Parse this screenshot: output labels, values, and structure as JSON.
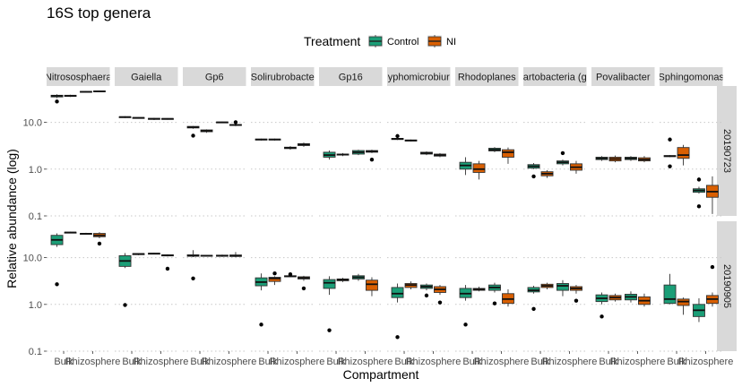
{
  "chart_data": {
    "type": "boxplot",
    "title": "16S top genera",
    "xlabel": "Compartment",
    "ylabel": "Relative abundance (log)",
    "y_scale": "log10",
    "ylim": [
      0.1,
      60
    ],
    "y_ticks": [
      "0.1",
      "1.0",
      "10.0"
    ],
    "x_categories": [
      "Bulk",
      "Rhizosphere"
    ],
    "legend": {
      "title": "Treatment",
      "position": "top",
      "entries": [
        {
          "name": "Control",
          "color": "#1b9e77"
        },
        {
          "name": "NI",
          "color": "#d95f02"
        }
      ]
    },
    "facet_cols": [
      "Nitrososphaera",
      "Gaiella",
      "Gp6",
      "Solirubrobacter",
      "Gp16",
      "Hyphomicrobium",
      "Rhodoplanes",
      "Spartobacteria (genus)",
      "Povalibacter",
      "Sphingomonas"
    ],
    "facet_col_labels": [
      "Nitrososphaera",
      "Gaiella",
      "Gp6",
      "Solirubrobacte",
      "Gp16",
      "yphomicrobiur",
      "Rhodoplanes",
      "artobacteria (g",
      "Povalibacter",
      "Sphingomonas"
    ],
    "facet_rows": [
      "20190723",
      "20190905"
    ],
    "boxes": [
      {
        "row": 0,
        "col": 0,
        "x": "Bulk",
        "t": "Control",
        "s": [
          33,
          35,
          37,
          38,
          40
        ],
        "out": [
          28
        ]
      },
      {
        "row": 0,
        "col": 0,
        "x": "Bulk",
        "t": "NI",
        "s": [
          35,
          36,
          37,
          38,
          39
        ],
        "out": []
      },
      {
        "row": 0,
        "col": 0,
        "x": "Rhizosphere",
        "t": "Control",
        "s": [
          43,
          44,
          45,
          46,
          47
        ],
        "out": []
      },
      {
        "row": 0,
        "col": 0,
        "x": "Rhizosphere",
        "t": "NI",
        "s": [
          44,
          45,
          46,
          47,
          48
        ],
        "out": []
      },
      {
        "row": 0,
        "col": 1,
        "x": "Bulk",
        "t": "Control",
        "s": [
          12.4,
          12.8,
          13.0,
          13.2,
          13.5
        ],
        "out": []
      },
      {
        "row": 0,
        "col": 1,
        "x": "Bulk",
        "t": "NI",
        "s": [
          12.0,
          12.3,
          12.5,
          12.7,
          12.9
        ],
        "out": []
      },
      {
        "row": 0,
        "col": 1,
        "x": "Rhizosphere",
        "t": "Control",
        "s": [
          11.2,
          11.6,
          11.9,
          12.2,
          12.5
        ],
        "out": []
      },
      {
        "row": 0,
        "col": 1,
        "x": "Rhizosphere",
        "t": "NI",
        "s": [
          11.4,
          11.7,
          11.9,
          12.1,
          12.3
        ],
        "out": []
      },
      {
        "row": 0,
        "col": 2,
        "x": "Bulk",
        "t": "Control",
        "s": [
          7.3,
          7.6,
          7.9,
          8.2,
          8.4
        ],
        "out": [
          5.2
        ]
      },
      {
        "row": 0,
        "col": 2,
        "x": "Bulk",
        "t": "NI",
        "s": [
          6.0,
          6.3,
          6.6,
          6.9,
          7.1
        ],
        "out": []
      },
      {
        "row": 0,
        "col": 2,
        "x": "Rhizosphere",
        "t": "Control",
        "s": [
          9.6,
          9.8,
          10.0,
          10.2,
          10.4
        ],
        "out": []
      },
      {
        "row": 0,
        "col": 2,
        "x": "Rhizosphere",
        "t": "NI",
        "s": [
          8.3,
          8.6,
          8.8,
          9.0,
          9.3
        ],
        "out": [
          10.1
        ]
      },
      {
        "row": 0,
        "col": 3,
        "x": "Bulk",
        "t": "Control",
        "s": [
          4.1,
          4.2,
          4.3,
          4.4,
          4.5
        ],
        "out": []
      },
      {
        "row": 0,
        "col": 3,
        "x": "Bulk",
        "t": "NI",
        "s": [
          4.1,
          4.2,
          4.3,
          4.4,
          4.5
        ],
        "out": []
      },
      {
        "row": 0,
        "col": 3,
        "x": "Rhizosphere",
        "t": "Control",
        "s": [
          2.6,
          2.75,
          2.85,
          2.95,
          3.1
        ],
        "out": []
      },
      {
        "row": 0,
        "col": 3,
        "x": "Rhizosphere",
        "t": "NI",
        "s": [
          3.0,
          3.2,
          3.35,
          3.5,
          3.7
        ],
        "out": []
      },
      {
        "row": 0,
        "col": 4,
        "x": "Bulk",
        "t": "Control",
        "s": [
          1.6,
          1.8,
          2.0,
          2.3,
          2.5
        ],
        "out": []
      },
      {
        "row": 0,
        "col": 4,
        "x": "Bulk",
        "t": "NI",
        "s": [
          1.9,
          2.0,
          2.05,
          2.1,
          2.2
        ],
        "out": []
      },
      {
        "row": 0,
        "col": 4,
        "x": "Rhizosphere",
        "t": "Control",
        "s": [
          2.0,
          2.1,
          2.3,
          2.5,
          2.6
        ],
        "out": []
      },
      {
        "row": 0,
        "col": 4,
        "x": "Rhizosphere",
        "t": "NI",
        "s": [
          2.2,
          2.3,
          2.4,
          2.5,
          2.6
        ],
        "out": [
          1.6
        ]
      },
      {
        "row": 0,
        "col": 5,
        "x": "Bulk",
        "t": "Control",
        "s": [
          4.2,
          4.3,
          4.45,
          4.55,
          4.7
        ],
        "out": [
          5.1
        ]
      },
      {
        "row": 0,
        "col": 5,
        "x": "Bulk",
        "t": "NI",
        "s": [
          3.9,
          4.0,
          4.1,
          4.2,
          4.3
        ],
        "out": []
      },
      {
        "row": 0,
        "col": 5,
        "x": "Rhizosphere",
        "t": "Control",
        "s": [
          2.0,
          2.1,
          2.2,
          2.3,
          2.4
        ],
        "out": []
      },
      {
        "row": 0,
        "col": 5,
        "x": "Rhizosphere",
        "t": "NI",
        "s": [
          1.8,
          1.9,
          2.0,
          2.1,
          2.2
        ],
        "out": []
      },
      {
        "row": 0,
        "col": 6,
        "x": "Bulk",
        "t": "Control",
        "s": [
          0.75,
          1.0,
          1.2,
          1.4,
          1.8
        ],
        "out": []
      },
      {
        "row": 0,
        "col": 6,
        "x": "Bulk",
        "t": "NI",
        "s": [
          0.6,
          0.85,
          1.0,
          1.3,
          1.5
        ],
        "out": []
      },
      {
        "row": 0,
        "col": 6,
        "x": "Rhizosphere",
        "t": "Control",
        "s": [
          2.3,
          2.45,
          2.6,
          2.8,
          2.95
        ],
        "out": []
      },
      {
        "row": 0,
        "col": 6,
        "x": "Rhizosphere",
        "t": "NI",
        "s": [
          1.3,
          1.8,
          2.3,
          2.6,
          2.9
        ],
        "out": []
      },
      {
        "row": 0,
        "col": 7,
        "x": "Bulk",
        "t": "Control",
        "s": [
          1.0,
          1.05,
          1.15,
          1.25,
          1.35
        ],
        "out": [
          0.7
        ]
      },
      {
        "row": 0,
        "col": 7,
        "x": "Bulk",
        "t": "NI",
        "s": [
          0.65,
          0.72,
          0.8,
          0.88,
          0.95
        ],
        "out": []
      },
      {
        "row": 0,
        "col": 7,
        "x": "Rhizosphere",
        "t": "Control",
        "s": [
          1.2,
          1.3,
          1.4,
          1.5,
          1.6
        ],
        "out": [
          2.2
        ]
      },
      {
        "row": 0,
        "col": 7,
        "x": "Rhizosphere",
        "t": "NI",
        "s": [
          0.8,
          0.95,
          1.1,
          1.3,
          1.5
        ],
        "out": []
      },
      {
        "row": 0,
        "col": 8,
        "x": "Bulk",
        "t": "Control",
        "s": [
          1.5,
          1.6,
          1.7,
          1.8,
          1.9
        ],
        "out": []
      },
      {
        "row": 0,
        "col": 8,
        "x": "Bulk",
        "t": "NI",
        "s": [
          1.4,
          1.5,
          1.65,
          1.8,
          1.95
        ],
        "out": []
      },
      {
        "row": 0,
        "col": 8,
        "x": "Rhizosphere",
        "t": "Control",
        "s": [
          1.5,
          1.6,
          1.7,
          1.8,
          1.9
        ],
        "out": []
      },
      {
        "row": 0,
        "col": 8,
        "x": "Rhizosphere",
        "t": "NI",
        "s": [
          1.4,
          1.5,
          1.6,
          1.75,
          1.9
        ],
        "out": []
      },
      {
        "row": 0,
        "col": 9,
        "x": "Bulk",
        "t": "Control",
        "s": [
          1.8,
          1.85,
          1.9,
          1.95,
          2.0
        ],
        "out": [
          4.3,
          1.15
        ]
      },
      {
        "row": 0,
        "col": 9,
        "x": "Bulk",
        "t": "NI",
        "s": [
          1.2,
          1.7,
          2.0,
          2.9,
          3.3
        ],
        "out": []
      },
      {
        "row": 0,
        "col": 9,
        "x": "Rhizosphere",
        "t": "Control",
        "s": [
          0.3,
          0.32,
          0.35,
          0.38,
          0.42
        ],
        "out": [
          0.6,
          0.16
        ]
      },
      {
        "row": 0,
        "col": 9,
        "x": "Rhizosphere",
        "t": "NI",
        "s": [
          0.11,
          0.25,
          0.33,
          0.45,
          0.7
        ],
        "out": []
      },
      {
        "row": 1,
        "col": 0,
        "x": "Bulk",
        "t": "Control",
        "s": [
          17,
          19,
          24,
          30,
          33
        ],
        "out": [
          2.7
        ]
      },
      {
        "row": 1,
        "col": 0,
        "x": "Bulk",
        "t": "NI",
        "s": [
          33,
          34,
          34.5,
          35,
          36
        ],
        "out": []
      },
      {
        "row": 1,
        "col": 0,
        "x": "Rhizosphere",
        "t": "Control",
        "s": [
          31,
          32,
          32.5,
          33,
          34
        ],
        "out": []
      },
      {
        "row": 1,
        "col": 0,
        "x": "Rhizosphere",
        "t": "NI",
        "s": [
          26,
          28,
          30,
          33,
          35
        ],
        "out": [
          20
        ]
      },
      {
        "row": 1,
        "col": 1,
        "x": "Bulk",
        "t": "Control",
        "s": [
          6.0,
          6.5,
          8.5,
          11.0,
          12.5
        ],
        "out": [
          0.97
        ]
      },
      {
        "row": 1,
        "col": 1,
        "x": "Bulk",
        "t": "NI",
        "s": [
          11.3,
          11.6,
          12.0,
          12.2,
          12.4
        ],
        "out": []
      },
      {
        "row": 1,
        "col": 1,
        "x": "Rhizosphere",
        "t": "Control",
        "s": [
          11.8,
          12.0,
          12.2,
          12.4,
          12.6
        ],
        "out": []
      },
      {
        "row": 1,
        "col": 1,
        "x": "Rhizosphere",
        "t": "NI",
        "s": [
          10.6,
          10.9,
          11.2,
          11.5,
          11.8
        ],
        "out": [
          5.8
        ]
      },
      {
        "row": 1,
        "col": 2,
        "x": "Bulk",
        "t": "Control",
        "s": [
          10.3,
          10.7,
          11.0,
          11.5,
          14.5
        ],
        "out": [
          3.6
        ]
      },
      {
        "row": 1,
        "col": 2,
        "x": "Bulk",
        "t": "NI",
        "s": [
          10.5,
          10.8,
          11.0,
          11.2,
          11.5
        ],
        "out": []
      },
      {
        "row": 1,
        "col": 2,
        "x": "Rhizosphere",
        "t": "Control",
        "s": [
          10.4,
          10.7,
          11.0,
          11.3,
          11.6
        ],
        "out": []
      },
      {
        "row": 1,
        "col": 2,
        "x": "Rhizosphere",
        "t": "NI",
        "s": [
          10.2,
          10.6,
          11.0,
          11.4,
          13.2
        ],
        "out": []
      },
      {
        "row": 1,
        "col": 3,
        "x": "Bulk",
        "t": "Control",
        "s": [
          2.0,
          2.5,
          3.0,
          3.7,
          4.6
        ],
        "out": [
          0.37
        ]
      },
      {
        "row": 1,
        "col": 3,
        "x": "Bulk",
        "t": "NI",
        "s": [
          2.6,
          3.1,
          3.6,
          3.8,
          4.0
        ],
        "out": [
          4.6
        ]
      },
      {
        "row": 1,
        "col": 3,
        "x": "Rhizosphere",
        "t": "Control",
        "s": [
          3.8,
          3.9,
          4.0,
          4.1,
          4.2
        ],
        "out": [
          4.4
        ]
      },
      {
        "row": 1,
        "col": 3,
        "x": "Rhizosphere",
        "t": "NI",
        "s": [
          3.2,
          3.5,
          3.7,
          3.9,
          4.1
        ],
        "out": [
          2.2
        ]
      },
      {
        "row": 1,
        "col": 4,
        "x": "Bulk",
        "t": "Control",
        "s": [
          1.6,
          2.2,
          2.9,
          3.4,
          4.0
        ],
        "out": [
          0.28
        ]
      },
      {
        "row": 1,
        "col": 4,
        "x": "Bulk",
        "t": "NI",
        "s": [
          3.0,
          3.2,
          3.4,
          3.5,
          3.7
        ],
        "out": []
      },
      {
        "row": 1,
        "col": 4,
        "x": "Rhizosphere",
        "t": "Control",
        "s": [
          3.2,
          3.5,
          3.8,
          4.1,
          4.5
        ],
        "out": []
      },
      {
        "row": 1,
        "col": 4,
        "x": "Rhizosphere",
        "t": "NI",
        "s": [
          1.5,
          2.0,
          2.7,
          3.3,
          3.8
        ],
        "out": []
      },
      {
        "row": 1,
        "col": 5,
        "x": "Bulk",
        "t": "Control",
        "s": [
          1.1,
          1.4,
          1.7,
          2.3,
          2.8
        ],
        "out": [
          0.2
        ]
      },
      {
        "row": 1,
        "col": 5,
        "x": "Bulk",
        "t": "NI",
        "s": [
          2.1,
          2.3,
          2.6,
          2.8,
          3.1
        ],
        "out": []
      },
      {
        "row": 1,
        "col": 5,
        "x": "Rhizosphere",
        "t": "Control",
        "s": [
          2.0,
          2.2,
          2.4,
          2.6,
          2.8
        ],
        "out": [
          1.55
        ]
      },
      {
        "row": 1,
        "col": 5,
        "x": "Rhizosphere",
        "t": "NI",
        "s": [
          1.6,
          1.8,
          2.1,
          2.4,
          2.6
        ],
        "out": [
          1.1
        ]
      },
      {
        "row": 1,
        "col": 6,
        "x": "Bulk",
        "t": "Control",
        "s": [
          1.2,
          1.4,
          1.7,
          2.2,
          2.6
        ],
        "out": [
          0.37
        ]
      },
      {
        "row": 1,
        "col": 6,
        "x": "Bulk",
        "t": "NI",
        "s": [
          1.9,
          2.0,
          2.1,
          2.2,
          2.4
        ],
        "out": []
      },
      {
        "row": 1,
        "col": 6,
        "x": "Rhizosphere",
        "t": "Control",
        "s": [
          1.8,
          2.0,
          2.3,
          2.6,
          2.9
        ],
        "out": [
          1.05
        ]
      },
      {
        "row": 1,
        "col": 6,
        "x": "Rhizosphere",
        "t": "NI",
        "s": [
          0.9,
          1.05,
          1.3,
          1.7,
          2.1
        ],
        "out": []
      },
      {
        "row": 1,
        "col": 7,
        "x": "Bulk",
        "t": "Control",
        "s": [
          1.7,
          1.85,
          2.0,
          2.3,
          2.5
        ],
        "out": [
          0.8
        ]
      },
      {
        "row": 1,
        "col": 7,
        "x": "Bulk",
        "t": "NI",
        "s": [
          2.1,
          2.3,
          2.5,
          2.7,
          2.9
        ],
        "out": []
      },
      {
        "row": 1,
        "col": 7,
        "x": "Rhizosphere",
        "t": "Control",
        "s": [
          1.5,
          2.0,
          2.5,
          2.8,
          3.3
        ],
        "out": []
      },
      {
        "row": 1,
        "col": 7,
        "x": "Rhizosphere",
        "t": "NI",
        "s": [
          1.7,
          2.0,
          2.2,
          2.4,
          2.6
        ],
        "out": [
          1.2
        ]
      },
      {
        "row": 1,
        "col": 8,
        "x": "Bulk",
        "t": "Control",
        "s": [
          1.0,
          1.15,
          1.35,
          1.6,
          1.8
        ],
        "out": [
          0.55
        ]
      },
      {
        "row": 1,
        "col": 8,
        "x": "Bulk",
        "t": "NI",
        "s": [
          1.15,
          1.25,
          1.4,
          1.55,
          1.7
        ],
        "out": []
      },
      {
        "row": 1,
        "col": 8,
        "x": "Rhizosphere",
        "t": "Control",
        "s": [
          1.1,
          1.25,
          1.45,
          1.65,
          1.9
        ],
        "out": []
      },
      {
        "row": 1,
        "col": 8,
        "x": "Rhizosphere",
        "t": "NI",
        "s": [
          0.9,
          1.0,
          1.2,
          1.45,
          1.7
        ],
        "out": []
      },
      {
        "row": 1,
        "col": 9,
        "x": "Bulk",
        "t": "Control",
        "s": [
          1.0,
          1.05,
          1.3,
          2.6,
          4.5
        ],
        "out": []
      },
      {
        "row": 1,
        "col": 9,
        "x": "Bulk",
        "t": "NI",
        "s": [
          0.6,
          0.95,
          1.15,
          1.3,
          1.4
        ],
        "out": []
      },
      {
        "row": 1,
        "col": 9,
        "x": "Rhizosphere",
        "t": "Control",
        "s": [
          0.42,
          0.55,
          0.75,
          1.0,
          1.35
        ],
        "out": []
      },
      {
        "row": 1,
        "col": 9,
        "x": "Rhizosphere",
        "t": "NI",
        "s": [
          0.9,
          1.05,
          1.3,
          1.55,
          1.8
        ],
        "out": [
          6.3
        ]
      }
    ]
  }
}
